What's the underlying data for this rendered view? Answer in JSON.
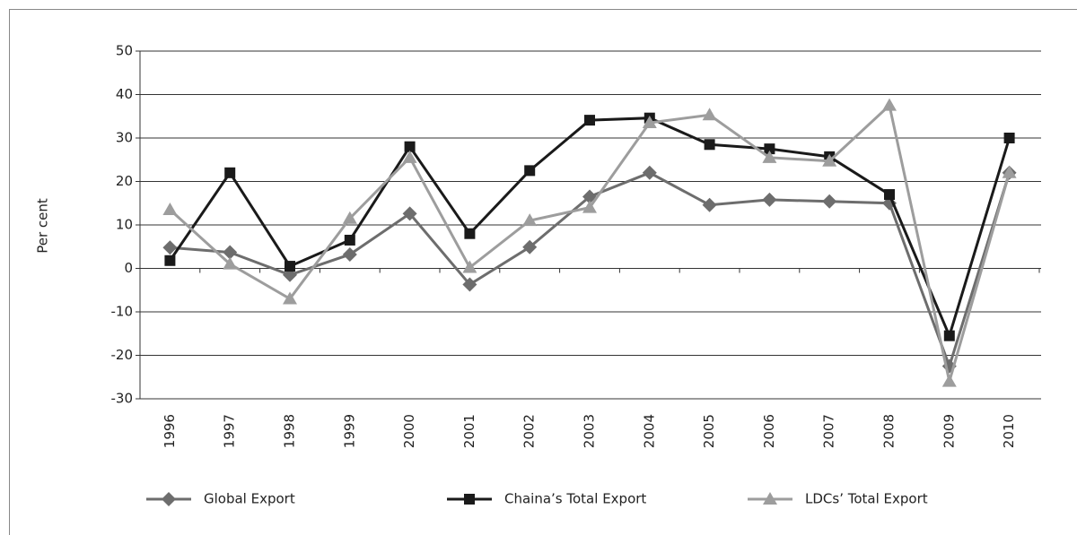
{
  "chart_data": {
    "type": "line",
    "y_label": "Per cent",
    "categories": [
      "1996",
      "1997",
      "1998",
      "1999",
      "2000",
      "2001",
      "2002",
      "2003",
      "2004",
      "2005",
      "2006",
      "2007",
      "2008",
      "2009",
      "2010"
    ],
    "series": [
      {
        "name": "Global Export",
        "color": "#6d6d6d",
        "marker": "diamond",
        "values": [
          4.8,
          3.7,
          -1.5,
          3.2,
          12.6,
          -3.7,
          4.9,
          16.5,
          22,
          14.6,
          15.8,
          15.4,
          15,
          -22.5,
          22
        ]
      },
      {
        "name": "Chaina’s Total Export",
        "color": "#1a1a1a",
        "marker": "square",
        "values": [
          1.8,
          22,
          0.5,
          6.5,
          28,
          8,
          22.5,
          34.1,
          34.6,
          28.5,
          27.5,
          25.7,
          17,
          -15.5,
          30
        ]
      },
      {
        "name": "LDCs’ Total Export",
        "color": "#9d9d9d",
        "marker": "triangle",
        "values": [
          13.5,
          1,
          -7,
          11.5,
          25.5,
          0.2,
          11,
          14,
          33.5,
          35.3,
          25.5,
          24.7,
          37.5,
          -26,
          22
        ]
      }
    ],
    "ylim": [
      -30,
      50
    ],
    "yticks": [
      -30,
      -20,
      -10,
      0,
      10,
      20,
      30,
      40,
      50
    ],
    "grid": true
  }
}
